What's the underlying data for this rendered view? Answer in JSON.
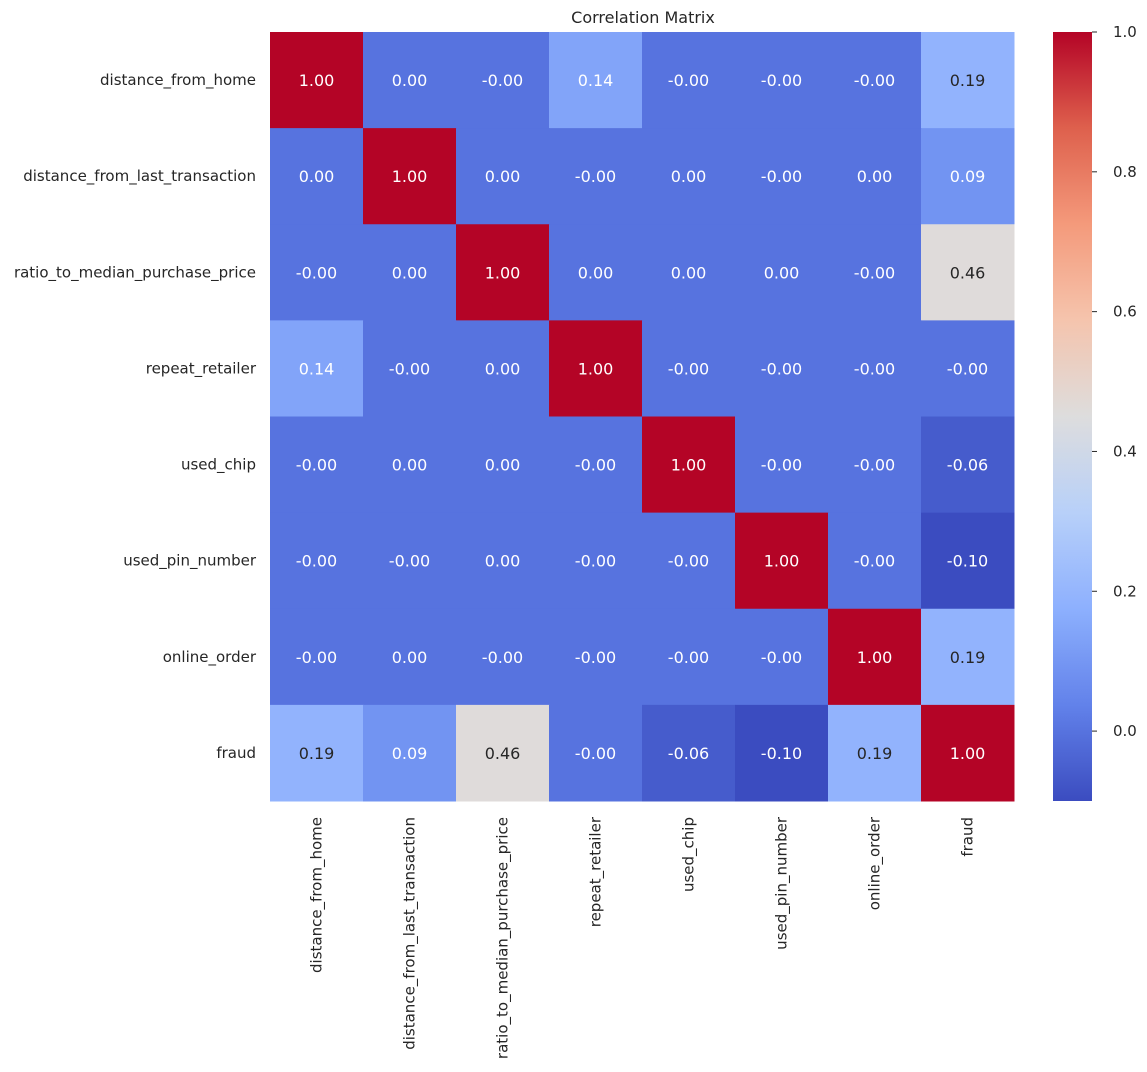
{
  "chart_data": {
    "type": "heatmap",
    "title": "Correlation Matrix",
    "xlabel": "",
    "ylabel": "",
    "variables": [
      "distance_from_home",
      "distance_from_last_transaction",
      "ratio_to_median_purchase_price",
      "repeat_retailer",
      "used_chip",
      "used_pin_number",
      "online_order",
      "fraud"
    ],
    "values": [
      [
        1.0,
        0.0,
        -0.0,
        0.14,
        -0.0,
        -0.0,
        -0.0,
        0.19
      ],
      [
        0.0,
        1.0,
        0.0,
        -0.0,
        0.0,
        -0.0,
        0.0,
        0.09
      ],
      [
        -0.0,
        0.0,
        1.0,
        0.0,
        0.0,
        0.0,
        -0.0,
        0.46
      ],
      [
        0.14,
        -0.0,
        0.0,
        1.0,
        -0.0,
        -0.0,
        -0.0,
        -0.0
      ],
      [
        -0.0,
        0.0,
        0.0,
        -0.0,
        1.0,
        -0.0,
        -0.0,
        -0.06
      ],
      [
        -0.0,
        -0.0,
        0.0,
        -0.0,
        -0.0,
        1.0,
        -0.0,
        -0.1
      ],
      [
        -0.0,
        0.0,
        -0.0,
        -0.0,
        -0.0,
        -0.0,
        1.0,
        0.19
      ],
      [
        0.19,
        0.09,
        0.46,
        -0.0,
        -0.06,
        -0.1,
        0.19,
        1.0
      ]
    ],
    "annotations": [
      [
        "1.00",
        "0.00",
        "-0.00",
        "0.14",
        "-0.00",
        "-0.00",
        "-0.00",
        "0.19"
      ],
      [
        "0.00",
        "1.00",
        "0.00",
        "-0.00",
        "0.00",
        "-0.00",
        "0.00",
        "0.09"
      ],
      [
        "-0.00",
        "0.00",
        "1.00",
        "0.00",
        "0.00",
        "0.00",
        "-0.00",
        "0.46"
      ],
      [
        "0.14",
        "-0.00",
        "0.00",
        "1.00",
        "-0.00",
        "-0.00",
        "-0.00",
        "-0.00"
      ],
      [
        "-0.00",
        "0.00",
        "0.00",
        "-0.00",
        "1.00",
        "-0.00",
        "-0.00",
        "-0.06"
      ],
      [
        "-0.00",
        "-0.00",
        "0.00",
        "-0.00",
        "-0.00",
        "1.00",
        "-0.00",
        "-0.10"
      ],
      [
        "-0.00",
        "0.00",
        "-0.00",
        "-0.00",
        "-0.00",
        "-0.00",
        "1.00",
        "0.19"
      ],
      [
        "0.19",
        "0.09",
        "0.46",
        "-0.00",
        "-0.06",
        "-0.10",
        "0.19",
        "1.00"
      ]
    ],
    "colormap": "coolwarm",
    "vmin": -0.1,
    "vmax": 1.0,
    "colorbar_ticks": [
      1.0,
      0.8,
      0.6,
      0.4,
      0.2,
      0.0
    ],
    "colorbar_tick_labels": [
      "1.0",
      "0.8",
      "0.6",
      "0.4",
      "0.2",
      "0.0"
    ],
    "grid": false
  }
}
